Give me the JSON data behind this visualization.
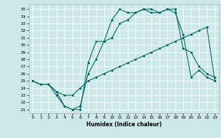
{
  "title": "",
  "xlabel": "Humidex (Indice chaleur)",
  "bg_color": "#cce8e8",
  "grid_color": "#ffffff",
  "line_color": "#006666",
  "xlim": [
    -0.5,
    23.5
  ],
  "ylim": [
    20.5,
    35.7
  ],
  "yticks": [
    21,
    22,
    23,
    24,
    25,
    26,
    27,
    28,
    29,
    30,
    31,
    32,
    33,
    34,
    35
  ],
  "xticks": [
    0,
    1,
    2,
    3,
    4,
    5,
    6,
    7,
    8,
    9,
    10,
    11,
    12,
    13,
    14,
    15,
    16,
    17,
    18,
    19,
    20,
    21,
    22,
    23
  ],
  "line1_x": [
    0,
    1,
    2,
    3,
    4,
    5,
    6,
    7,
    8,
    9,
    10,
    11,
    12,
    13,
    14,
    15,
    16,
    17,
    18,
    19,
    20,
    21,
    22,
    23
  ],
  "line1_y": [
    25.0,
    24.5,
    24.5,
    23.5,
    23.0,
    23.0,
    24.0,
    25.0,
    25.5,
    26.0,
    26.5,
    27.0,
    27.5,
    28.0,
    28.5,
    29.0,
    29.5,
    30.0,
    30.5,
    31.0,
    31.5,
    32.0,
    32.5,
    25.0
  ],
  "line2_x": [
    0,
    1,
    2,
    3,
    4,
    5,
    6,
    7,
    8,
    9,
    10,
    11,
    12,
    13,
    14,
    15,
    16,
    17,
    18,
    19,
    20,
    21,
    22,
    23
  ],
  "line2_y": [
    25.0,
    24.5,
    24.5,
    23.5,
    21.5,
    21.0,
    21.5,
    26.0,
    28.0,
    30.5,
    31.0,
    33.0,
    33.5,
    34.5,
    35.0,
    34.5,
    34.5,
    35.0,
    35.0,
    29.5,
    29.0,
    27.0,
    26.0,
    25.5
  ],
  "line3_x": [
    0,
    1,
    2,
    3,
    4,
    5,
    6,
    7,
    8,
    9,
    10,
    11,
    12,
    13,
    14,
    15,
    16,
    17,
    18,
    19,
    20,
    21,
    22,
    23
  ],
  "line3_y": [
    25.0,
    24.5,
    24.5,
    23.0,
    21.5,
    21.0,
    21.0,
    27.5,
    30.5,
    30.5,
    33.5,
    35.0,
    34.5,
    34.5,
    35.0,
    35.0,
    34.5,
    35.0,
    34.5,
    31.5,
    25.5,
    26.5,
    25.5,
    25.0
  ]
}
